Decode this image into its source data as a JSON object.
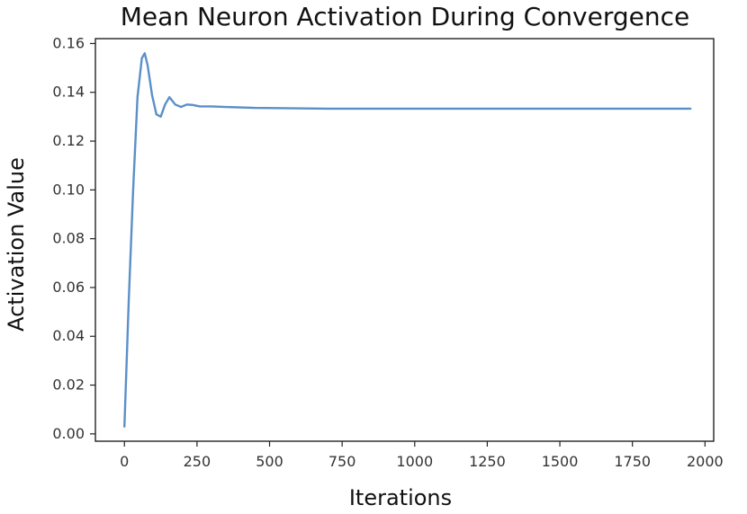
{
  "chart_data": {
    "type": "line",
    "title": "Mean Neuron Activation During Convergence",
    "xlabel": "Iterations",
    "ylabel": "Activation Value",
    "xlim": [
      -100,
      2030
    ],
    "ylim": [
      -0.003,
      0.162
    ],
    "x_ticks": [
      0,
      250,
      500,
      750,
      1000,
      1250,
      1500,
      1750,
      2000
    ],
    "y_ticks": [
      0.0,
      0.02,
      0.04,
      0.06,
      0.08,
      0.1,
      0.12,
      0.14,
      0.16
    ],
    "x_tick_labels": [
      "0",
      "250",
      "500",
      "750",
      "1000",
      "1250",
      "1500",
      "1750",
      "2000"
    ],
    "y_tick_labels": [
      "0.00",
      "0.02",
      "0.04",
      "0.06",
      "0.08",
      "0.10",
      "0.12",
      "0.14",
      "0.16"
    ],
    "grid": false,
    "legend": false,
    "series": [
      {
        "color": "#5b8fc9",
        "x": [
          0,
          15,
          30,
          45,
          60,
          70,
          80,
          95,
          110,
          125,
          140,
          155,
          175,
          195,
          215,
          235,
          260,
          300,
          350,
          450,
          700,
          1000,
          1500,
          1950
        ],
        "y": [
          0.003,
          0.055,
          0.1,
          0.138,
          0.154,
          0.156,
          0.151,
          0.139,
          0.131,
          0.13,
          0.135,
          0.138,
          0.135,
          0.134,
          0.135,
          0.1348,
          0.1342,
          0.1342,
          0.134,
          0.1336,
          0.1333,
          0.1333,
          0.1333,
          0.1333
        ]
      }
    ]
  }
}
